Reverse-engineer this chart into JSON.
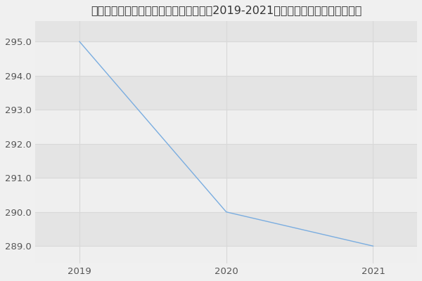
{
  "title": "内蒙古医科大学中医学院中医临床基础（2019-2021历年复试）研究生录取分数线",
  "x": [
    2019,
    2020,
    2021
  ],
  "y": [
    295,
    290,
    289
  ],
  "line_color": "#7aade0",
  "background_color": "#f0f0f0",
  "band_color_light": "#efefef",
  "band_color_dark": "#e4e4e4",
  "grid_color": "#d8d8d8",
  "xlim": [
    2018.7,
    2021.3
  ],
  "ylim": [
    288.5,
    295.6
  ],
  "yticks": [
    289.0,
    290.0,
    291.0,
    292.0,
    293.0,
    294.0,
    295.0
  ],
  "xticks": [
    2019,
    2020,
    2021
  ],
  "title_fontsize": 11.5,
  "tick_fontsize": 9.5,
  "tick_color": "#555555"
}
